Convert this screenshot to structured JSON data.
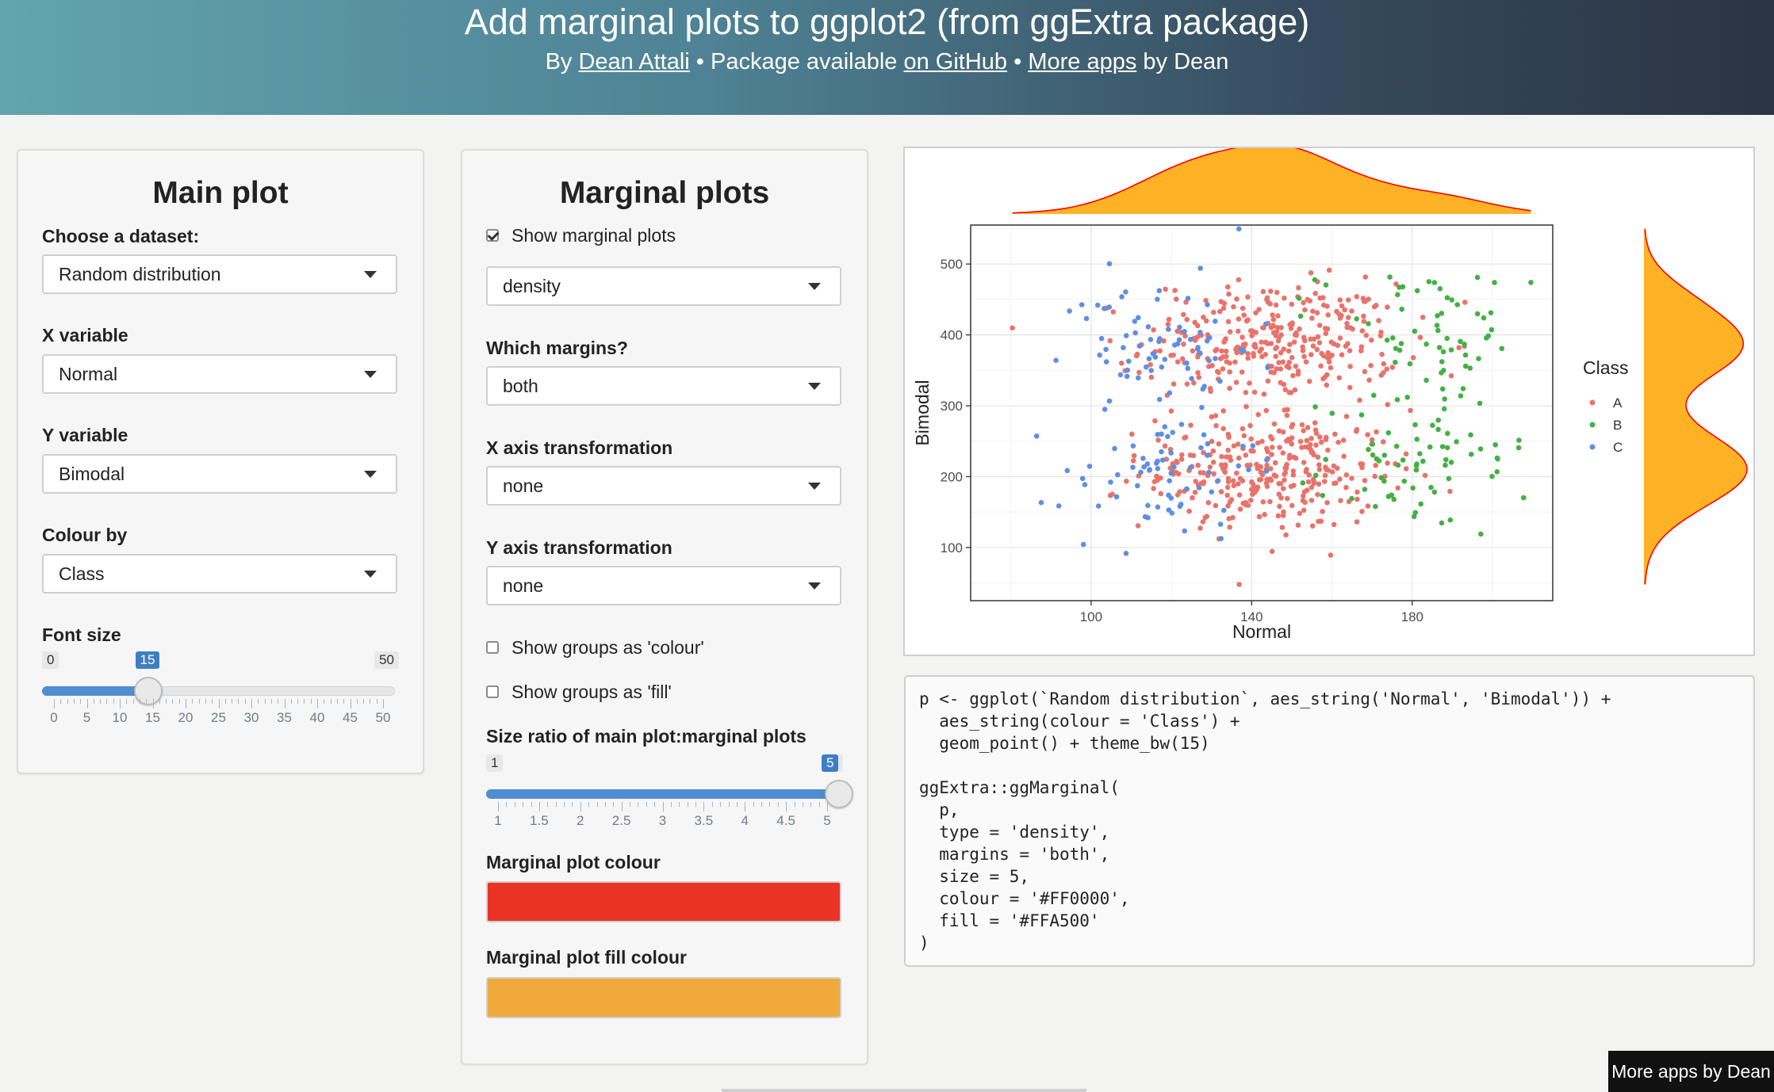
{
  "header": {
    "title": "Add marginal plots to ggplot2 (from ggExtra package)",
    "by": "By ",
    "author": "Dean Attali",
    "sep1": " • Package available ",
    "github": "on GitHub",
    "sep2": " • ",
    "more_apps": "More apps",
    "by_dean": " by Dean"
  },
  "main_panel": {
    "title": "Main plot",
    "dataset_label": "Choose a dataset:",
    "dataset_value": "Random distribution",
    "x_label": "X variable",
    "x_value": "Normal",
    "y_label": "Y variable",
    "y_value": "Bimodal",
    "colour_label": "Colour by",
    "colour_value": "Class",
    "font_label": "Font size",
    "font_slider": {
      "min": 0,
      "max": 50,
      "value": 15,
      "ticks": [
        "0",
        "5",
        "10",
        "15",
        "20",
        "25",
        "30",
        "35",
        "40",
        "45",
        "50"
      ]
    }
  },
  "marginal_panel": {
    "title": "Marginal plots",
    "show_label": "Show marginal plots",
    "show_checked": true,
    "type_value": "density",
    "margins_label": "Which margins?",
    "margins_value": "both",
    "xtrans_label": "X axis transformation",
    "xtrans_value": "none",
    "ytrans_label": "Y axis transformation",
    "ytrans_value": "none",
    "groups_colour_label": "Show groups as 'colour'",
    "groups_fill_label": "Show groups as 'fill'",
    "size_label": "Size ratio of main plot:marginal plots",
    "size_slider": {
      "min": 1,
      "max": 5,
      "value": 5,
      "ticks": [
        "1",
        "1.5",
        "2",
        "2.5",
        "3",
        "3.5",
        "4",
        "4.5",
        "5"
      ]
    },
    "colour_label": "Marginal plot colour",
    "colour_hex": "#EA3323",
    "fill_label": "Marginal plot fill colour",
    "fill_hex": "#F2A93B"
  },
  "chart_data": {
    "type": "scatter",
    "xlabel": "Normal",
    "ylabel": "Bimodal",
    "xlim": [
      70,
      215
    ],
    "ylim": [
      25,
      555
    ],
    "xticks": [
      100,
      140,
      180
    ],
    "yticks": [
      100,
      200,
      300,
      400,
      500
    ],
    "grid": true,
    "legend": {
      "title": "Class",
      "position": "right",
      "entries": [
        "A",
        "B",
        "C"
      ]
    },
    "series": [
      {
        "name": "A",
        "color": "#E8736B",
        "n": 640,
        "x_center": [
          145,
          145
        ],
        "x_sd": [
          16,
          16
        ],
        "y_center": [
          210,
          390
        ],
        "y_sd": [
          42,
          42
        ]
      },
      {
        "name": "B",
        "color": "#44B044",
        "n": 130,
        "x_center": [
          183,
          183
        ],
        "x_sd": [
          13,
          13
        ],
        "y_center": [
          215,
          395
        ],
        "y_sd": [
          50,
          50
        ]
      },
      {
        "name": "C",
        "color": "#5E8FE3",
        "n": 140,
        "x_center": [
          117,
          117
        ],
        "x_sd": [
          12,
          12
        ],
        "y_center": [
          210,
          385
        ],
        "y_sd": [
          48,
          48
        ]
      }
    ],
    "marginal": {
      "type": "density",
      "margins": "both",
      "colour": "#FF0000",
      "fill": "#FFA500"
    }
  },
  "code": {
    "text": "p <- ggplot(`Random distribution`, aes_string('Normal', 'Bimodal')) +\n  aes_string(colour = 'Class') +\n  geom_point() + theme_bw(15)\n\nggExtra::ggMarginal(\n  p,\n  type = 'density',\n  margins = 'both',\n  size = 5,\n  colour = '#FF0000',\n  fill = '#FFA500'\n)"
  },
  "footer": {
    "more_apps_button": "More apps by Dean"
  }
}
